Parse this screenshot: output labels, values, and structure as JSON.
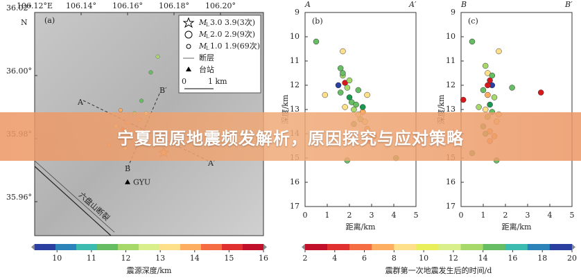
{
  "banner": {
    "title": "宁夏固原地震频发解析，原因探究与应对策略"
  },
  "map": {
    "label": "(a)",
    "lon_ticks": [
      {
        "value": 106.12,
        "label": "106.12°E"
      },
      {
        "value": 106.14,
        "label": "106.14°"
      },
      {
        "value": 106.16,
        "label": "106.16°"
      },
      {
        "value": 106.18,
        "label": "106.18°"
      },
      {
        "value": 106.2,
        "label": "106.20°"
      }
    ],
    "lat_ticks": [
      {
        "value": 36.02,
        "label": "36.02°"
      },
      {
        "value": 36.0,
        "label": "36.00°"
      },
      {
        "value": 35.98,
        "label": "35.98°"
      },
      {
        "value": 35.96,
        "label": "35.96°"
      }
    ],
    "lat_unit": "N",
    "legend": [
      {
        "m": "M",
        "sub": "L",
        "text": "3.0  3.9(3次)"
      },
      {
        "m": "M",
        "sub": "L",
        "text": "2.0  2.9(9次)"
      },
      {
        "m": "M",
        "sub": "L",
        "text": "1.0  1.9(69次)"
      },
      {
        "text": "断层"
      },
      {
        "text": "台站"
      }
    ],
    "scale": [
      "0",
      "1 km"
    ],
    "profile_labels": [
      "A",
      "A′",
      "B",
      "B′"
    ],
    "station": {
      "name": "GYU",
      "lon": 106.16,
      "lat": 35.966
    },
    "fault_name": "六盘山断裂",
    "events": [
      {
        "lon": 106.16,
        "lat": 35.985,
        "color": "#fdae61"
      },
      {
        "lon": 106.158,
        "lat": 35.983,
        "color": "#f46d43"
      },
      {
        "lon": 106.162,
        "lat": 35.982,
        "color": "#fdae61"
      },
      {
        "lon": 106.155,
        "lat": 35.984,
        "color": "#fee08b"
      },
      {
        "lon": 106.165,
        "lat": 35.986,
        "color": "#fdae61"
      },
      {
        "lon": 106.168,
        "lat": 35.981,
        "color": "#f46d43"
      },
      {
        "lon": 106.163,
        "lat": 35.988,
        "color": "#a6d96a"
      },
      {
        "lon": 106.166,
        "lat": 35.992,
        "color": "#66bd63"
      },
      {
        "lon": 106.17,
        "lat": 36.001,
        "color": "#66bd63"
      },
      {
        "lon": 106.173,
        "lat": 36.006,
        "color": "#a6d96a"
      },
      {
        "lon": 106.152,
        "lat": 35.978,
        "color": "#fdae61"
      },
      {
        "lon": 106.159,
        "lat": 35.977,
        "color": "#fee08b"
      },
      {
        "lon": 106.168,
        "lat": 35.988,
        "color": "#fee08b"
      },
      {
        "lon": 106.157,
        "lat": 35.989,
        "color": "#fdae61"
      }
    ]
  },
  "colorbar_depth": {
    "label": "震源深度/km",
    "lim": [
      9.35,
      16
    ],
    "ticks": [
      10,
      11,
      12,
      13,
      14,
      15,
      16
    ],
    "colors": [
      "#2b3fa0",
      "#2b83ba",
      "#3cbcb0",
      "#66bd63",
      "#a6d96a",
      "#d9ef8b",
      "#fee08b",
      "#fdae61",
      "#f46d43",
      "#e03030",
      "#c0102a"
    ]
  },
  "colorbar_time": {
    "label": "震群第一次地震发生后的时间/d",
    "lim": [
      2,
      20
    ],
    "ticks": [
      2,
      4,
      6,
      8,
      10,
      12,
      14,
      16,
      18,
      20
    ],
    "colors": [
      "#c0102a",
      "#e03030",
      "#f46d43",
      "#fdae61",
      "#fee08b",
      "#e8ef5b",
      "#d9ef8b",
      "#a6d96a",
      "#66bd63",
      "#3cbcb0",
      "#2b83ba",
      "#2b3fa0"
    ]
  },
  "profiles": [
    {
      "label": "(b)",
      "left": "A",
      "right": "A′",
      "xlabel": "距离/km",
      "ylabel": "深度/km",
      "xlim": [
        0,
        5
      ],
      "ylim": [
        9,
        17
      ],
      "xticks": [
        0,
        1,
        2,
        3,
        4,
        5
      ],
      "yticks": [
        9,
        10,
        11,
        12,
        13,
        14,
        15,
        16,
        17
      ],
      "x": [
        0.5,
        1.7,
        0.9,
        1.9,
        4.1,
        2.8,
        1.6,
        1.7,
        1.8,
        1.5,
        1.6,
        1.9,
        2.0,
        2.1,
        1.8,
        2.2,
        2.3,
        2.4,
        2.5,
        2.2,
        2.6,
        2.7,
        2.8,
        3.0,
        2.9,
        3.1,
        2.4,
        2.0,
        1.7,
        2.6
      ],
      "y": [
        10.2,
        10.6,
        12.4,
        15.1,
        15.0,
        12.4,
        11.3,
        11.6,
        11.9,
        12.0,
        12.3,
        12.1,
        12.5,
        12.7,
        12.9,
        13.0,
        12.8,
        13.2,
        13.4,
        13.6,
        13.1,
        13.5,
        13.8,
        14.0,
        14.3,
        14.1,
        12.2,
        11.8,
        11.5,
        12.9
      ],
      "colors": [
        "#66bd63",
        "#fee08b",
        "#fee08b",
        "#66bd63",
        "#66bd63",
        "#fee08b",
        "#66bd63",
        "#a6d96a",
        "#d7191c",
        "#2b3fa0",
        "#66bd63",
        "#a6d96a",
        "#1a9850",
        "#66bd63",
        "#fee08b",
        "#a6d96a",
        "#66bd63",
        "#fee08b",
        "#a6d96a",
        "#66bd63",
        "#fdae61",
        "#fee08b",
        "#fdae61",
        "#fdae61",
        "#f46d43",
        "#fdae61",
        "#66bd63",
        "#a6d96a",
        "#66bd63",
        "#1a9850"
      ]
    },
    {
      "label": "(c)",
      "left": "B",
      "right": "B′",
      "xlabel": "距离/km",
      "ylabel": "深度/km",
      "xlim": [
        0,
        5
      ],
      "ylim": [
        9,
        17
      ],
      "xticks": [
        0,
        1,
        2,
        3,
        4,
        5
      ],
      "yticks": [
        9,
        10,
        11,
        12,
        13,
        14,
        15,
        16,
        17
      ],
      "x": [
        0.5,
        1.7,
        0.1,
        3.6,
        2.3,
        1.6,
        0.5,
        1.1,
        1.2,
        1.3,
        1.4,
        1.0,
        1.2,
        1.5,
        1.3,
        1.1,
        1.4,
        1.2,
        1.6,
        1.0,
        1.3,
        1.5,
        1.2,
        1.4,
        0.8,
        1.7,
        1.1,
        1.3
      ],
      "y": [
        10.2,
        10.6,
        12.6,
        12.3,
        12.1,
        15.1,
        14.8,
        11.2,
        11.5,
        11.8,
        12.0,
        12.2,
        12.4,
        12.5,
        12.8,
        13.0,
        13.1,
        13.3,
        13.5,
        13.7,
        13.9,
        14.1,
        12.0,
        11.6,
        12.9,
        13.2,
        14.0,
        14.3
      ],
      "colors": [
        "#66bd63",
        "#fee08b",
        "#d7191c",
        "#d7191c",
        "#66bd63",
        "#66bd63",
        "#66bd63",
        "#a6d96a",
        "#fee08b",
        "#d7191c",
        "#2b3fa0",
        "#66bd63",
        "#fdae61",
        "#a6d96a",
        "#1a9850",
        "#fee08b",
        "#66bd63",
        "#a6d96a",
        "#fee08b",
        "#66bd63",
        "#fdae61",
        "#fdae61",
        "#d7191c",
        "#66bd63",
        "#a6d96a",
        "#fee08b",
        "#66bd63",
        "#fdae61"
      ]
    }
  ]
}
